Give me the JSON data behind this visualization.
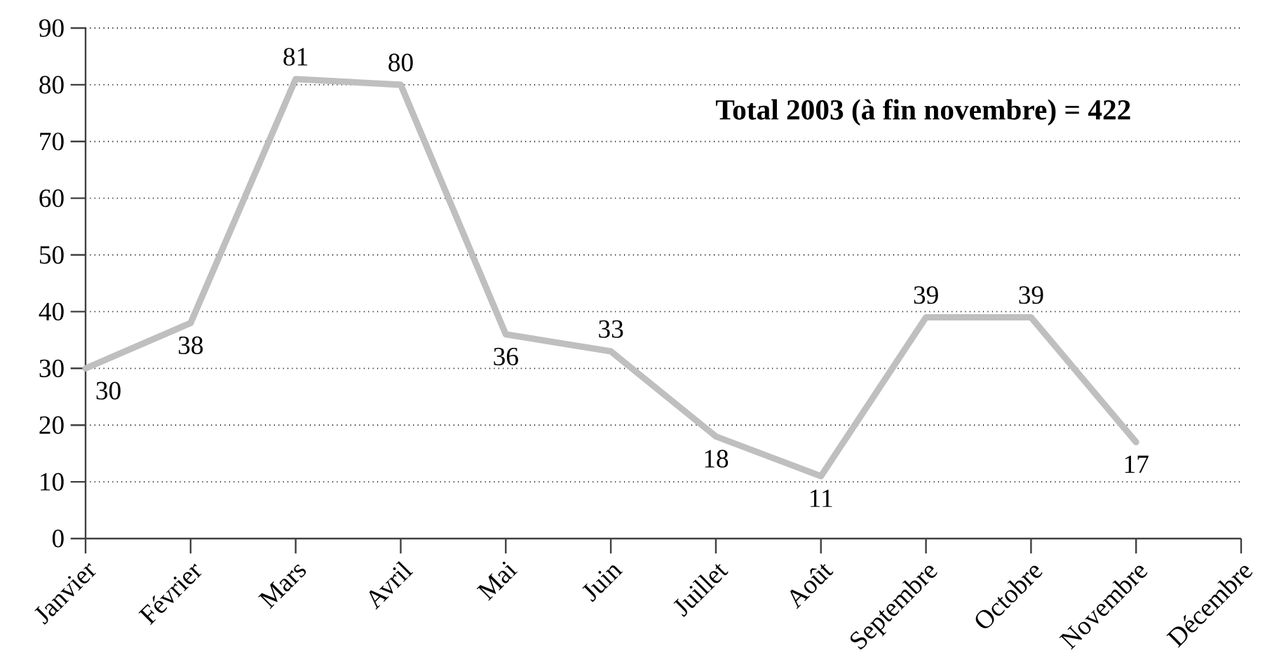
{
  "chart_data": {
    "type": "line",
    "categories": [
      "Janvier",
      "Février",
      "Mars",
      "Avril",
      "Mai",
      "Juin",
      "Juillet",
      "Août",
      "Septembre",
      "Octobre",
      "Novembre",
      "Décembre"
    ],
    "values": [
      30,
      38,
      81,
      80,
      36,
      33,
      18,
      11,
      39,
      39,
      17,
      null
    ],
    "color": "#bfbfbf",
    "line_style": "solid",
    "ylim": [
      0,
      90
    ],
    "yticks": [
      0,
      10,
      20,
      30,
      40,
      50,
      60,
      70,
      80,
      90
    ],
    "grid": "y",
    "data_labels": true,
    "annotations": [
      "Total 2003 (à fin novembre) = 422"
    ]
  }
}
